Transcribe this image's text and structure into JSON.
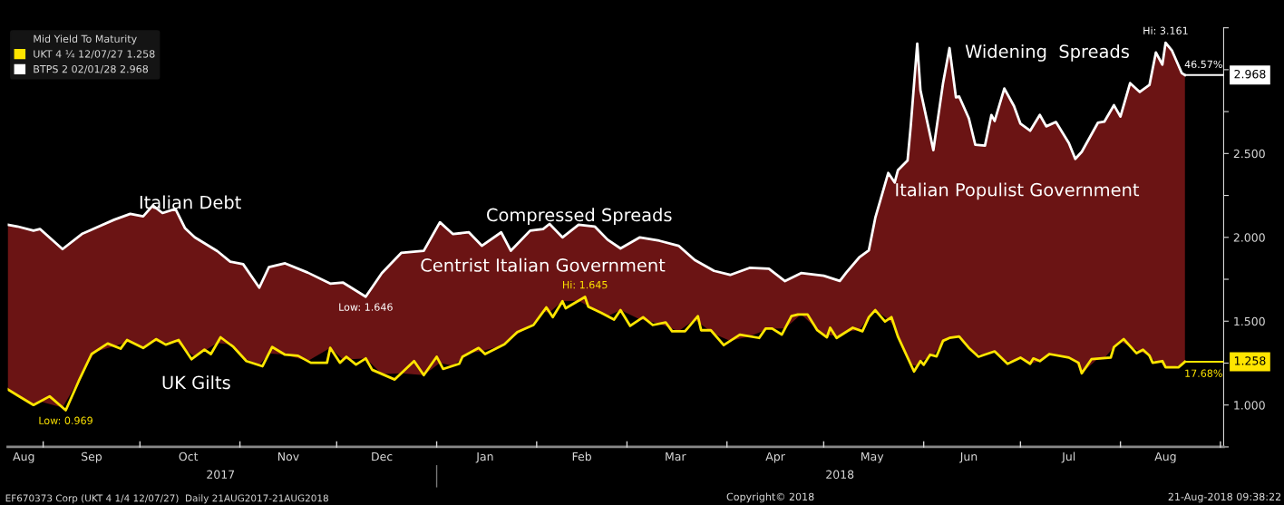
{
  "chart_data": {
    "type": "area",
    "legend_title": "Mid Yield To Maturity",
    "legend": "top left",
    "grid": false,
    "xlim": [
      "2017-08-21",
      "2018-09-02"
    ],
    "ylim": [
      0.75,
      3.25
    ],
    "yticks": [
      {
        "value": 0.75,
        "label": null
      },
      {
        "value": 1,
        "label": "1.000"
      },
      {
        "value": 1.25,
        "label": null
      },
      {
        "value": 1.5,
        "label": "1.500"
      },
      {
        "value": 1.75,
        "label": null
      },
      {
        "value": 2,
        "label": "2.000"
      },
      {
        "value": 2.25,
        "label": null
      },
      {
        "value": 2.5,
        "label": "2.500"
      },
      {
        "value": 2.75,
        "label": null
      },
      {
        "value": 3,
        "label": null
      },
      {
        "value": 3.25,
        "label": null
      }
    ],
    "xticks": [
      {
        "value": "2017-08-26",
        "label": "Aug"
      },
      {
        "value": "2017-09-01",
        "label": null
      },
      {
        "value": "2017-09-16",
        "label": "Sep"
      },
      {
        "value": "2017-10-01",
        "label": null
      },
      {
        "value": "2017-10-16",
        "label": "Oct"
      },
      {
        "value": "2017-11-01",
        "label": null
      },
      {
        "value": "2017-11-16",
        "label": "Nov"
      },
      {
        "value": "2017-12-01",
        "label": null
      },
      {
        "value": "2017-12-15",
        "label": "Dec"
      },
      {
        "value": "2018-01-01",
        "label": null
      },
      {
        "value": "2018-01-16",
        "label": "Jan"
      },
      {
        "value": "2018-02-01",
        "label": null
      },
      {
        "value": "2018-02-15",
        "label": "Feb"
      },
      {
        "value": "2018-03-01",
        "label": null
      },
      {
        "value": "2018-03-16",
        "label": "Mar"
      },
      {
        "value": "2018-04-01",
        "label": null
      },
      {
        "value": "2018-04-16",
        "label": "Apr"
      },
      {
        "value": "2018-05-01",
        "label": null
      },
      {
        "value": "2018-05-16",
        "label": "May"
      },
      {
        "value": "2018-06-01",
        "label": null
      },
      {
        "value": "2018-06-15",
        "label": "Jun"
      },
      {
        "value": "2018-07-01",
        "label": null
      },
      {
        "value": "2018-07-16",
        "label": "Jul"
      },
      {
        "value": "2018-08-01",
        "label": null
      },
      {
        "value": "2018-08-15",
        "label": "Aug"
      },
      {
        "value": "2018-09-01",
        "label": null
      }
    ],
    "x2lim": [
      "2017-08-21",
      "2018-09-02"
    ],
    "x2ticks": [
      {
        "value": "2017-10-26",
        "label": "2017"
      },
      {
        "value": "2018-01-01",
        "label": null
      },
      {
        "value": "2018-05-06",
        "label": "2018"
      }
    ],
    "series": [
      {
        "name": "UKT 4 ¼ 12/07/27 1.258",
        "type": "line",
        "color": "#ffe500",
        "x": [
          "2017-08-21",
          "2017-08-24",
          "2017-08-29",
          "2017-09-03",
          "2017-09-08",
          "2017-09-12",
          "2017-09-16",
          "2017-09-21",
          "2017-09-25",
          "2017-09-27",
          "2017-10-02",
          "2017-10-06",
          "2017-10-09",
          "2017-10-13",
          "2017-10-17",
          "2017-10-21",
          "2017-10-23",
          "2017-10-26",
          "2017-10-30",
          "2017-11-03",
          "2017-11-08",
          "2017-11-11",
          "2017-11-15",
          "2017-11-19",
          "2017-11-23",
          "2017-11-28",
          "2017-11-29",
          "2017-12-02",
          "2017-12-04",
          "2017-12-07",
          "2017-12-10",
          "2017-12-12",
          "2017-12-19",
          "2017-12-25",
          "2017-12-28",
          "2018-01-01",
          "2018-01-03",
          "2018-01-08",
          "2018-01-09",
          "2018-01-14",
          "2018-01-16",
          "2018-01-22",
          "2018-01-26",
          "2018-01-31",
          "2018-02-04",
          "2018-02-06",
          "2018-02-09",
          "2018-02-10",
          "2018-02-16",
          "2018-02-17",
          "2018-02-21",
          "2018-02-25",
          "2018-02-27",
          "2018-03-02",
          "2018-03-06",
          "2018-03-09",
          "2018-03-13",
          "2018-03-15",
          "2018-03-19",
          "2018-03-23",
          "2018-03-24",
          "2018-03-27",
          "2018-03-31",
          "2018-04-05",
          "2018-04-11",
          "2018-04-13",
          "2018-04-15",
          "2018-04-18",
          "2018-04-21",
          "2018-04-23",
          "2018-04-26",
          "2018-04-29",
          "2018-05-02",
          "2018-05-03",
          "2018-05-05",
          "2018-05-10",
          "2018-05-13",
          "2018-05-15",
          "2018-05-17",
          "2018-05-20",
          "2018-05-22",
          "2018-05-24",
          "2018-05-29",
          "2018-05-31",
          "2018-06-01",
          "2018-06-03",
          "2018-06-05",
          "2018-06-07",
          "2018-06-09",
          "2018-06-12",
          "2018-06-15",
          "2018-06-18",
          "2018-06-23",
          "2018-06-27",
          "2018-07-01",
          "2018-07-04",
          "2018-07-05",
          "2018-07-07",
          "2018-07-10",
          "2018-07-16",
          "2018-07-19",
          "2018-07-20",
          "2018-07-23",
          "2018-07-29",
          "2018-07-30",
          "2018-08-02",
          "2018-08-06",
          "2018-08-08",
          "2018-08-10",
          "2018-08-11",
          "2018-08-14",
          "2018-08-15",
          "2018-08-19",
          "2018-08-21"
        ],
        "values": [
          1.094,
          1.058,
          1.0,
          1.052,
          0.969,
          1.142,
          1.304,
          1.367,
          1.336,
          1.388,
          1.34,
          1.393,
          1.36,
          1.388,
          1.273,
          1.33,
          1.304,
          1.404,
          1.346,
          1.262,
          1.231,
          1.346,
          1.3,
          1.294,
          1.252,
          1.252,
          1.341,
          1.252,
          1.288,
          1.241,
          1.278,
          1.21,
          1.152,
          1.262,
          1.178,
          1.288,
          1.215,
          1.246,
          1.288,
          1.34,
          1.304,
          1.362,
          1.435,
          1.477,
          1.582,
          1.524,
          1.619,
          1.577,
          1.645,
          1.587,
          1.55,
          1.509,
          1.566,
          1.472,
          1.524,
          1.477,
          1.493,
          1.44,
          1.44,
          1.53,
          1.446,
          1.446,
          1.357,
          1.42,
          1.4,
          1.456,
          1.456,
          1.42,
          1.53,
          1.54,
          1.54,
          1.446,
          1.404,
          1.461,
          1.4,
          1.461,
          1.44,
          1.524,
          1.566,
          1.498,
          1.524,
          1.409,
          1.2,
          1.262,
          1.24,
          1.3,
          1.29,
          1.383,
          1.4,
          1.409,
          1.341,
          1.288,
          1.32,
          1.246,
          1.283,
          1.246,
          1.278,
          1.262,
          1.304,
          1.283,
          1.252,
          1.189,
          1.273,
          1.283,
          1.346,
          1.393,
          1.309,
          1.33,
          1.294,
          1.252,
          1.262,
          1.225,
          1.225,
          1.258
        ],
        "value_labels": [
          null,
          null,
          null,
          null,
          null,
          null,
          null,
          null,
          null,
          null,
          null,
          null,
          null,
          null,
          null,
          null,
          null,
          null,
          null,
          null,
          null,
          null,
          null,
          null,
          null,
          null,
          null,
          null,
          null,
          null,
          null,
          null,
          null,
          null,
          null,
          null,
          null,
          null,
          null,
          null,
          null,
          null,
          null,
          null,
          null,
          null,
          null,
          null,
          null,
          null,
          null,
          null,
          null,
          null,
          null,
          null,
          null,
          null,
          null,
          null,
          null,
          null,
          null,
          null,
          null,
          null,
          null,
          null,
          null,
          null,
          null,
          null,
          null,
          null,
          null,
          null,
          null,
          null,
          null,
          null,
          null,
          null,
          null,
          null,
          null,
          null,
          null,
          null,
          null,
          null,
          null,
          null,
          null,
          null,
          null,
          null,
          null,
          null,
          null,
          null,
          null,
          null,
          null,
          null,
          null,
          null,
          null,
          null,
          null,
          null,
          null,
          null,
          null,
          "1.258"
        ]
      },
      {
        "name": "BTPS 2 02/01/28 2.968",
        "color": "#ffffff",
        "colors": [
          "#6b1414",
          "#6b1414",
          "#6b1414",
          "#6b1414",
          "#6b1414",
          "#6b1414",
          "#6b1414",
          "#6b1414",
          "#6b1414",
          "#6b1414",
          "#6b1414",
          "#6b1414",
          "#6b1414",
          "#6b1414",
          "#6b1414",
          "#6b1414",
          "#6b1414",
          "#6b1414",
          "#6b1414",
          "#6b1414",
          "#6b1414",
          "#6b1414",
          "#6b1414",
          "#6b1414",
          "#6b1414",
          "#6b1414",
          "#6b1414",
          "#6b1414",
          "#6b1414",
          "#6b1414",
          "#6b1414",
          "#6b1414",
          "#6b1414",
          "#6b1414",
          "#6b1414",
          "#6b1414",
          "#6b1414",
          "#6b1414",
          "#6b1414",
          "#6b1414",
          "#6b1414",
          "#6b1414",
          "#6b1414",
          "#6b1414",
          "#6b1414",
          "#6b1414",
          "#6b1414",
          "#6b1414",
          "#6b1414",
          "#6b1414",
          "#6b1414",
          "#6b1414",
          "#6b1414",
          "#6b1414",
          "#6b1414",
          "#6b1414",
          "#6b1414",
          "#6b1414",
          "#6b1414",
          "#6b1414",
          "#6b1414",
          "#6b1414",
          "#6b1414",
          "#6b1414",
          "#6b1414",
          "#6b1414",
          "#6b1414",
          "#6b1414",
          "#6b1414",
          "#6b1414",
          "#6b1414",
          "#6b1414",
          "#6b1414",
          "#6b1414",
          "#6b1414",
          "#6b1414",
          "#6b1414",
          "#6b1414",
          "#6b1414",
          "#6b1414",
          "#6b1414",
          "#6b1414",
          "#6b1414",
          "#6b1414",
          "#6b1414",
          "#6b1414",
          "#6b1414",
          "#6b1414",
          "#6b1414",
          "#6b1414",
          "#6b1414",
          "#6b1414",
          "#6b1414",
          "#6b1414",
          "#6b1414",
          "#6b1414",
          "#6b1414",
          "#6b1414"
        ],
        "x": [
          "2017-08-21",
          "2017-08-24",
          "2017-08-29",
          "2017-08-31",
          "2017-09-07",
          "2017-09-13",
          "2017-09-17",
          "2017-09-23",
          "2017-09-28",
          "2017-10-02",
          "2017-10-05",
          "2017-10-08",
          "2017-10-12",
          "2017-10-15",
          "2017-10-18",
          "2017-10-25",
          "2017-10-29",
          "2017-11-02",
          "2017-11-07",
          "2017-11-10",
          "2017-11-15",
          "2017-11-22",
          "2017-11-29",
          "2017-12-03",
          "2017-12-10",
          "2017-12-15",
          "2017-12-21",
          "2017-12-28",
          "2018-01-02",
          "2018-01-06",
          "2018-01-11",
          "2018-01-15",
          "2018-01-21",
          "2018-01-24",
          "2018-01-30",
          "2018-02-03",
          "2018-02-05",
          "2018-02-09",
          "2018-02-14",
          "2018-02-19",
          "2018-02-23",
          "2018-02-27",
          "2018-03-05",
          "2018-03-11",
          "2018-03-17",
          "2018-03-22",
          "2018-03-28",
          "2018-04-02",
          "2018-04-08",
          "2018-04-14",
          "2018-04-19",
          "2018-04-24",
          "2018-05-01",
          "2018-05-06",
          "2018-05-08",
          "2018-05-12",
          "2018-05-15",
          "2018-05-17",
          "2018-05-21",
          "2018-05-23",
          "2018-05-24",
          "2018-05-27",
          "2018-05-28",
          "2018-05-30",
          "2018-05-31",
          "2018-06-04",
          "2018-06-07",
          "2018-06-09",
          "2018-06-11",
          "2018-06-12",
          "2018-06-15",
          "2018-06-17",
          "2018-06-20",
          "2018-06-22",
          "2018-06-23",
          "2018-06-26",
          "2018-06-29",
          "2018-07-01",
          "2018-07-04",
          "2018-07-07",
          "2018-07-09",
          "2018-07-12",
          "2018-07-16",
          "2018-07-18",
          "2018-07-20",
          "2018-07-25",
          "2018-07-27",
          "2018-07-30",
          "2018-08-01",
          "2018-08-04",
          "2018-08-07",
          "2018-08-10",
          "2018-08-12",
          "2018-08-14",
          "2018-08-15",
          "2018-08-17",
          "2018-08-20",
          "2018-08-21"
        ],
        "values": [
          2.075,
          2.065,
          2.04,
          2.05,
          1.93,
          2.02,
          2.054,
          2.105,
          2.14,
          2.125,
          2.19,
          2.145,
          2.17,
          2.054,
          2.0,
          1.918,
          1.855,
          1.84,
          1.7,
          1.823,
          1.845,
          1.79,
          1.724,
          1.73,
          1.646,
          1.787,
          1.907,
          1.92,
          2.09,
          2.02,
          2.03,
          1.95,
          2.03,
          1.92,
          2.04,
          2.05,
          2.08,
          2.0,
          2.075,
          2.065,
          1.986,
          1.934,
          2.0,
          1.98,
          1.95,
          1.865,
          1.8,
          1.776,
          1.818,
          1.813,
          1.739,
          1.787,
          1.771,
          1.74,
          1.79,
          1.88,
          1.923,
          2.117,
          2.384,
          2.327,
          2.4,
          2.458,
          2.668,
          3.155,
          2.877,
          2.52,
          2.92,
          3.129,
          2.835,
          2.84,
          2.71,
          2.552,
          2.547,
          2.73,
          2.694,
          2.888,
          2.783,
          2.678,
          2.636,
          2.73,
          2.662,
          2.688,
          2.563,
          2.468,
          2.51,
          2.683,
          2.69,
          2.788,
          2.72,
          2.92,
          2.867,
          2.909,
          3.103,
          3.03,
          3.161,
          3.113,
          2.98,
          2.968
        ],
        "value_labels": [
          null,
          null,
          null,
          null,
          null,
          null,
          null,
          null,
          null,
          null,
          null,
          null,
          null,
          null,
          null,
          null,
          null,
          null,
          null,
          null,
          null,
          null,
          null,
          null,
          null,
          null,
          null,
          null,
          null,
          null,
          null,
          null,
          null,
          null,
          null,
          null,
          null,
          null,
          null,
          null,
          null,
          null,
          null,
          null,
          null,
          null,
          null,
          null,
          null,
          null,
          null,
          null,
          null,
          null,
          null,
          null,
          null,
          null,
          null,
          null,
          null,
          null,
          null,
          null,
          null,
          null,
          null,
          null,
          null,
          null,
          null,
          null,
          null,
          null,
          null,
          null,
          null,
          null,
          null,
          null,
          null,
          null,
          null,
          null,
          null,
          null,
          null,
          null,
          null,
          null,
          null,
          null,
          null,
          null,
          null,
          null,
          null,
          "2.968"
        ]
      }
    ],
    "annotations": [
      "Italian Debt",
      "Compressed Spreads",
      "Centrist Italian Government",
      "Widening  Spreads",
      "Italian Populist Government",
      "UK Gilts",
      {
        "text": "Low: 0.969",
        "x": "2017-09-08",
        "y": 0.969
      },
      {
        "text": "Low: 1.646",
        "x": "2017-12-10",
        "y": 1.646
      },
      {
        "text": "Hi: 1.645",
        "x": "2018-02-16",
        "y": 1.645
      },
      {
        "text": "Hi: 3.161",
        "x": "2018-08-15",
        "y": 3.161
      },
      {
        "text": "46.57%",
        "x": "2018-08-21",
        "y": 2.968
      },
      {
        "text": "17.68%",
        "x": "2018-08-21",
        "y": 1.258
      },
      "EF670373 Corp (UKT 4 1/4 12/07/27)  Daily 21AUG2017-21AUG2018",
      "Copyright© 2018",
      "21-Aug-2018 09:38:22"
    ]
  }
}
